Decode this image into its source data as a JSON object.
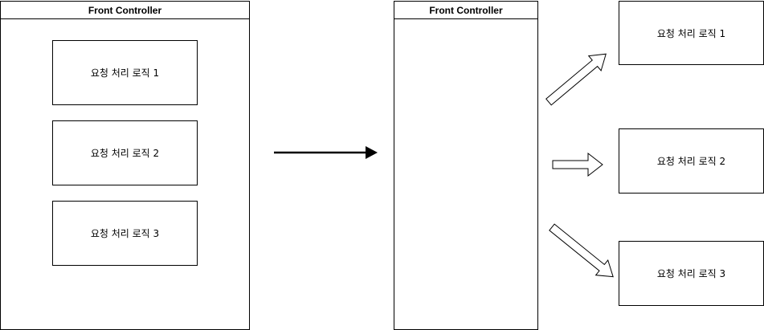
{
  "left_controller": {
    "title": "Front Controller",
    "items": [
      "요청 처리 로직 1",
      "요청 처리 로직 2",
      "요청 처리 로직 3"
    ]
  },
  "right_controller": {
    "title": "Front Controller"
  },
  "right_items": [
    "요청 처리 로직 1",
    "요청 처리 로직 2",
    "요청 처리 로직 3"
  ]
}
